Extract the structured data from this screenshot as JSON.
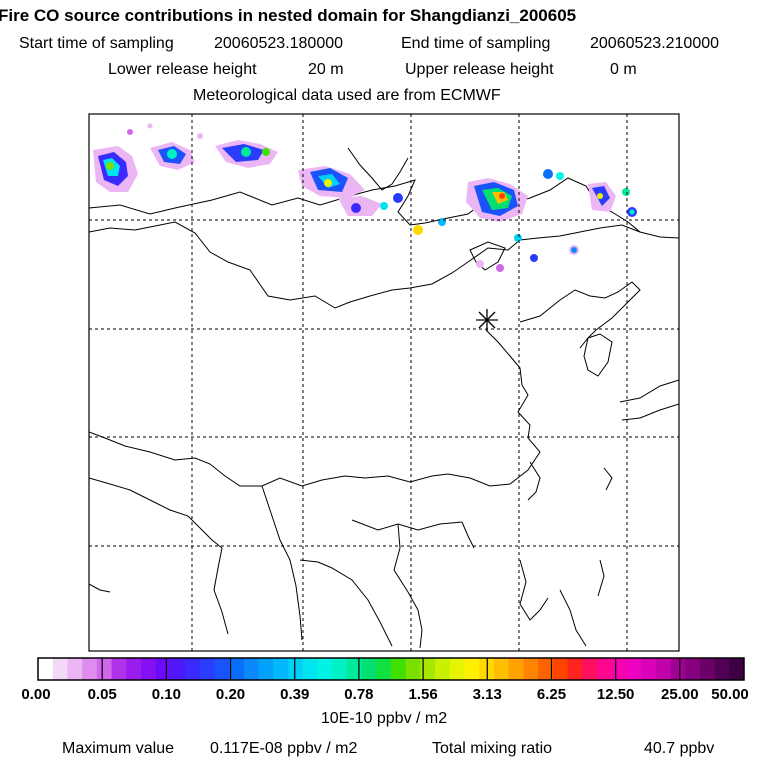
{
  "header": {
    "title": "Fire CO source contributions in nested domain for Shangdianzi_200605",
    "start_label": "Start time of sampling",
    "start_value": "20060523.180000",
    "end_label": "End time of sampling",
    "end_value": "20060523.210000",
    "lower_label": "Lower release height",
    "lower_value": "20 m",
    "upper_label": "Upper release height",
    "upper_value": "0 m",
    "met_line": "Meteorological data used are from ECMWF"
  },
  "map": {
    "gridlines": true,
    "receptor_marker": "asterisk-icon",
    "colors": {
      "border": "#000000",
      "grid": "#000000"
    },
    "plumes": [
      {
        "level": 0.05
      },
      {
        "level": 0.1
      },
      {
        "level": 0.2
      },
      {
        "level": 0.39
      },
      {
        "level": 0.78
      },
      {
        "level": 1.56
      },
      {
        "level": 3.13
      },
      {
        "level": 6.25
      }
    ]
  },
  "colorbar": {
    "labels": [
      "0.00",
      "0.05",
      "0.10",
      "0.20",
      "0.39",
      "0.78",
      "1.56",
      "3.13",
      "6.25",
      "12.50",
      "25.00",
      "50.00"
    ],
    "colors": [
      "#ffffff",
      "#f4d8f8",
      "#ecb6f4",
      "#e08cef",
      "#d168ec",
      "#b033e8",
      "#9a1df0",
      "#8410f6",
      "#6a0cf9",
      "#4f18fb",
      "#3a2bfc",
      "#2a3cfc",
      "#1a52fc",
      "#0a6efc",
      "#0a88fc",
      "#00a2fb",
      "#00b8fa",
      "#00d0f6",
      "#00e4f0",
      "#00f4e4",
      "#00f2c4",
      "#00ea9c",
      "#00e070",
      "#10e040",
      "#40e000",
      "#7ae000",
      "#a8e800",
      "#c8f000",
      "#e6f400",
      "#fff000",
      "#ffd800",
      "#ffbf00",
      "#ffa200",
      "#ff8400",
      "#ff6400",
      "#ff4400",
      "#ff2420",
      "#ff1060",
      "#ff0890",
      "#f800b0",
      "#ee00c0",
      "#d800b8",
      "#c000a8",
      "#a20094",
      "#84007e",
      "#6a0068",
      "#520056",
      "#3e0044"
    ],
    "units": "10E-10 ppbv / m2"
  },
  "footer": {
    "max_label": "Maximum value",
    "max_value": "0.117E-08 ppbv / m2",
    "total_label": "Total mixing ratio",
    "total_value": "40.7 ppbv"
  }
}
